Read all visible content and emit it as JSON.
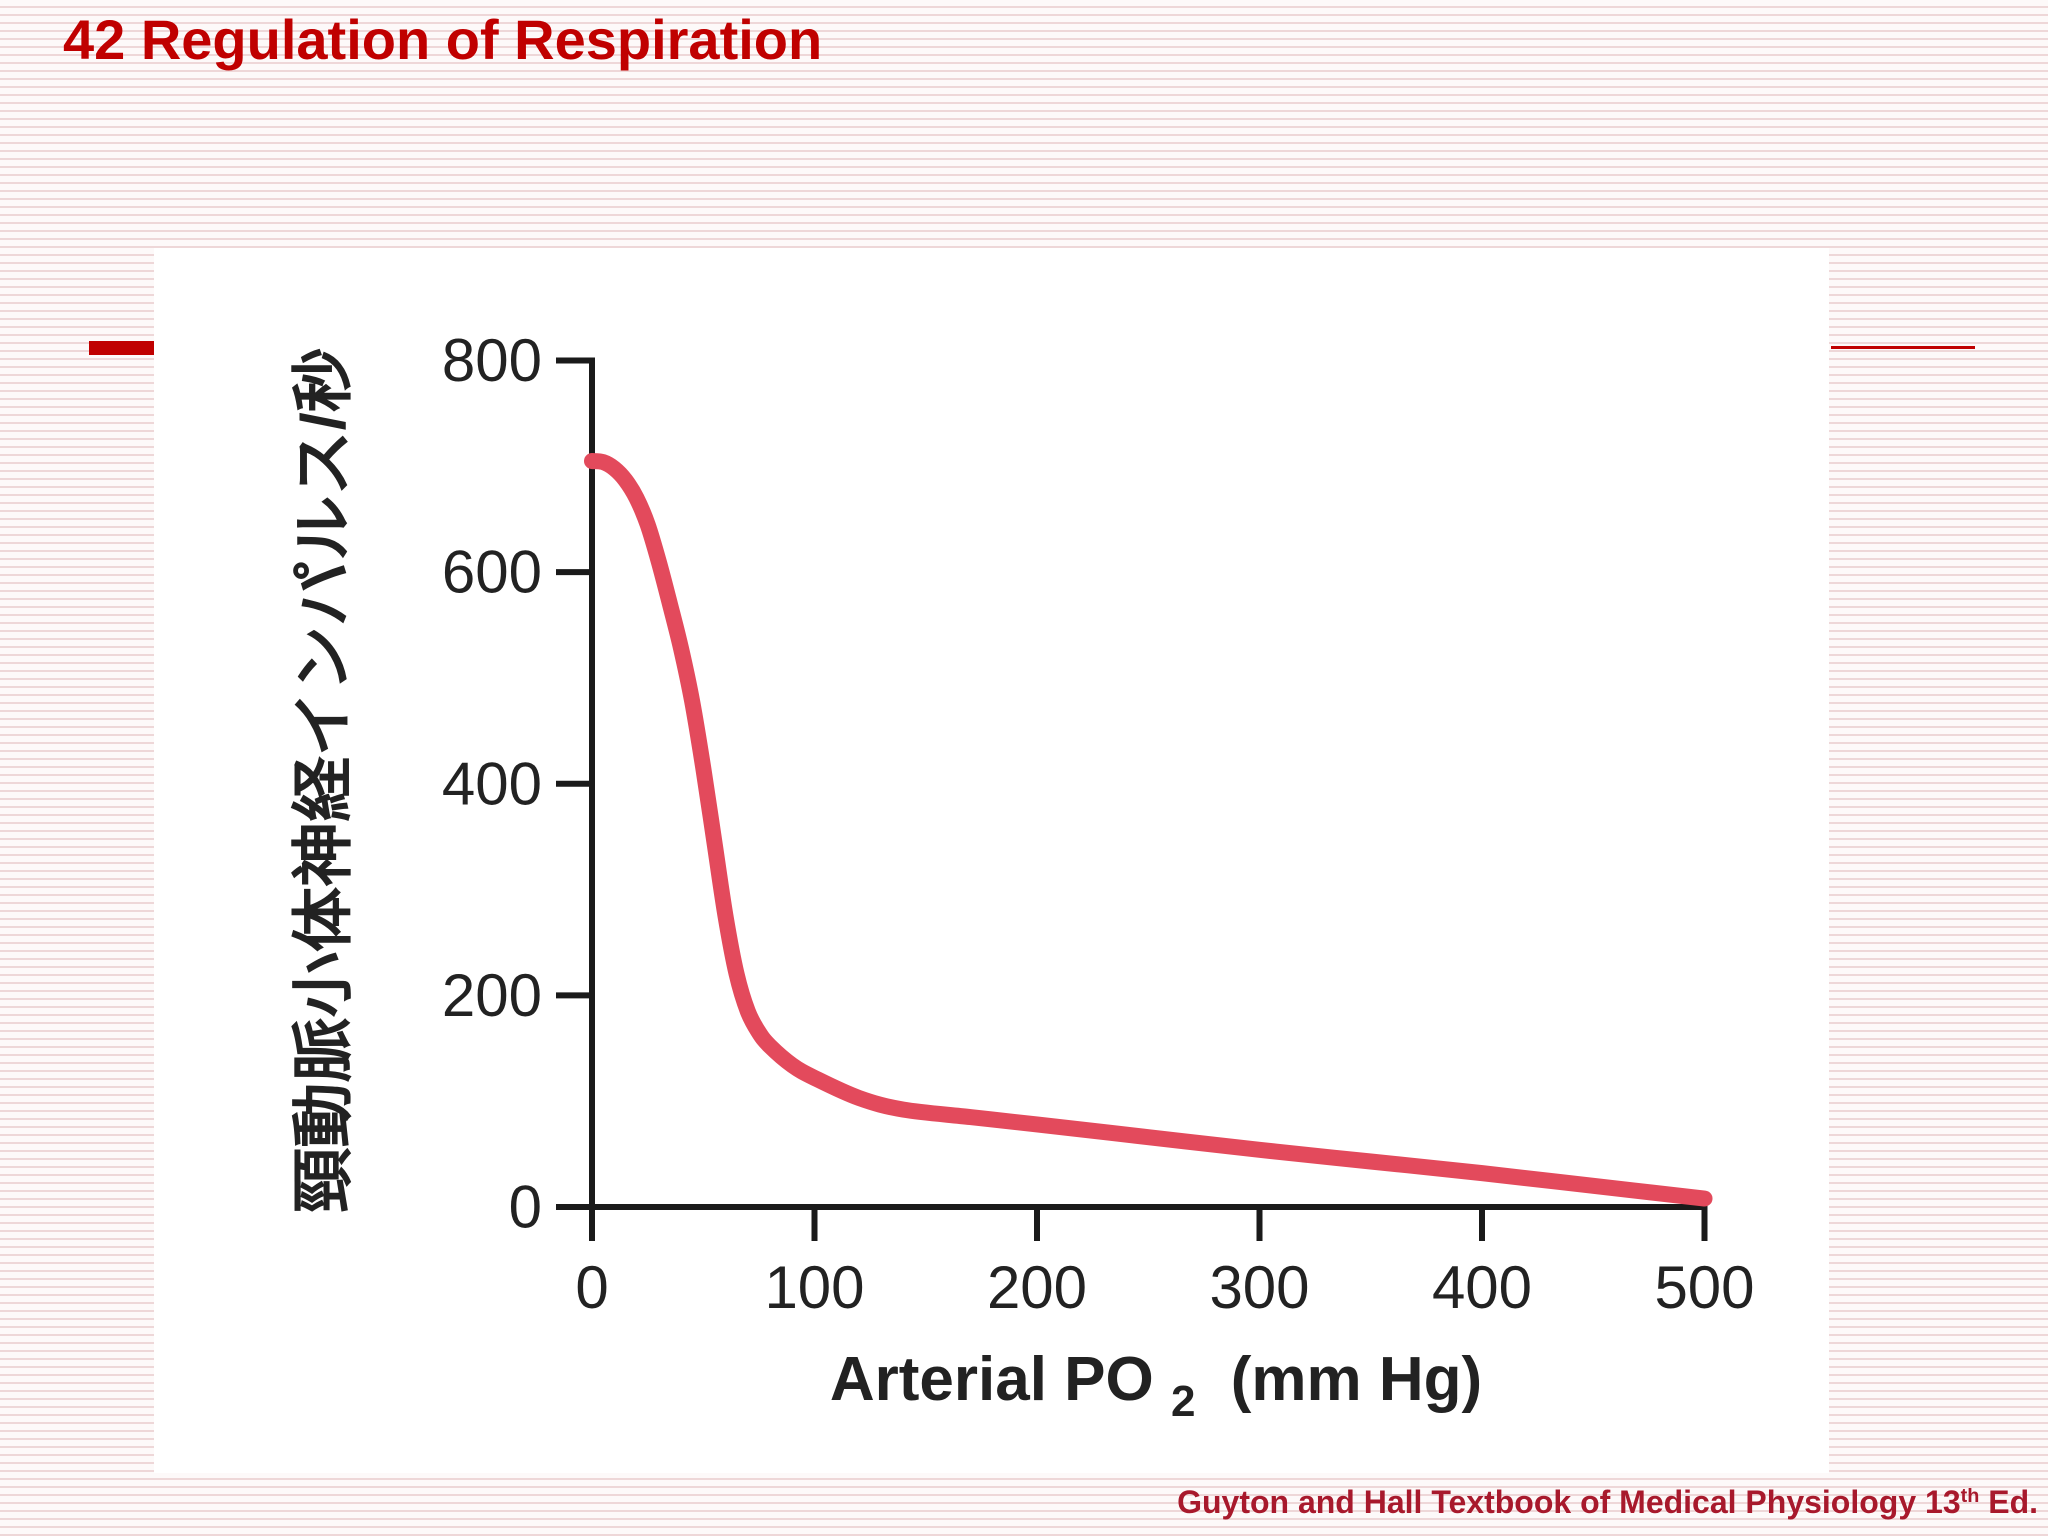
{
  "slide": {
    "title": "42 Regulation of Respiration",
    "source": {
      "text": "Guyton and Hall Textbook of Medical Physiology 13",
      "superscript": "th",
      "suffix": " Ed."
    }
  },
  "colors": {
    "title": "#c00000",
    "source": "#a8192c",
    "accent": "#c00000",
    "curve": "#e34a5c",
    "axis": "#1a1a1a"
  },
  "chart_data": {
    "type": "line",
    "title": "",
    "xlabel": {
      "base": "Arterial PO",
      "subscript": "2",
      "unit": "(mm Hg)"
    },
    "ylabel": "頸動脈小体神経インパルス/秒",
    "xlim": [
      0,
      500
    ],
    "ylim": [
      0,
      800
    ],
    "xticks": [
      0,
      100,
      200,
      300,
      400,
      500
    ],
    "yticks": [
      0,
      200,
      400,
      600,
      800
    ],
    "grid": false,
    "legend": "none",
    "series": [
      {
        "x": [
          0,
          5,
          10,
          15,
          20,
          25,
          30,
          35,
          40,
          45,
          50,
          55,
          60,
          65,
          70,
          75,
          80,
          90,
          100,
          120,
          140,
          170,
          200,
          250,
          300,
          350,
          400,
          450,
          500
        ],
        "y": [
          705,
          704,
          698,
          687,
          670,
          645,
          610,
          570,
          528,
          478,
          415,
          345,
          275,
          220,
          185,
          165,
          152,
          134,
          122,
          103,
          92,
          85,
          78,
          66,
          54,
          43,
          32,
          20,
          8
        ]
      }
    ]
  }
}
